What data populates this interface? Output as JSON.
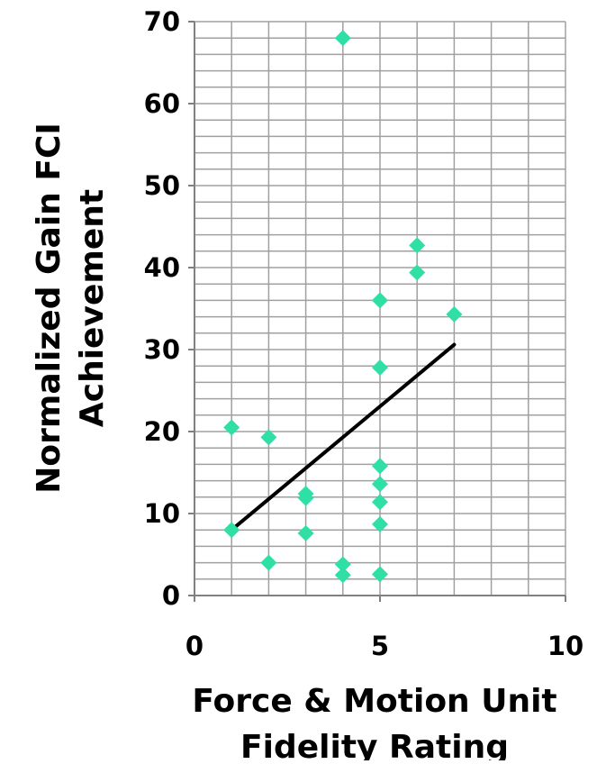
{
  "chart_data": {
    "type": "scatter",
    "xlabel": [
      "Force & Motion Unit",
      "Fidelity Rating"
    ],
    "ylabel": [
      "Normalized Gain FCI",
      "Achievement"
    ],
    "xlim": [
      0,
      10
    ],
    "ylim": [
      0,
      70
    ],
    "x_major_ticks": [
      0,
      5,
      10
    ],
    "y_major_ticks": [
      0,
      10,
      20,
      30,
      40,
      50,
      60,
      70
    ],
    "x_minor_step": 1,
    "y_minor_step": 2,
    "grid": true,
    "legend": "none",
    "marker": "diamond",
    "colors": {
      "points": "#2fdfa6",
      "trendline": "#000000",
      "grid": "#a0a0a0",
      "axis": "#808080"
    },
    "points": [
      {
        "x": 1,
        "y": 20.5
      },
      {
        "x": 1,
        "y": 8
      },
      {
        "x": 2,
        "y": 19.3
      },
      {
        "x": 2,
        "y": 4
      },
      {
        "x": 3,
        "y": 12.4
      },
      {
        "x": 3,
        "y": 11.9
      },
      {
        "x": 3,
        "y": 7.6
      },
      {
        "x": 4,
        "y": 68
      },
      {
        "x": 4,
        "y": 3.8
      },
      {
        "x": 4,
        "y": 2.5
      },
      {
        "x": 5,
        "y": 36
      },
      {
        "x": 5,
        "y": 27.8
      },
      {
        "x": 5,
        "y": 15.8
      },
      {
        "x": 5,
        "y": 13.6
      },
      {
        "x": 5,
        "y": 11.4
      },
      {
        "x": 5,
        "y": 8.7
      },
      {
        "x": 5,
        "y": 2.6
      },
      {
        "x": 6,
        "y": 42.7
      },
      {
        "x": 6,
        "y": 39.4
      },
      {
        "x": 7,
        "y": 34.3
      }
    ],
    "trendline": {
      "x": [
        1,
        7
      ],
      "y": [
        8,
        30.6
      ]
    }
  }
}
